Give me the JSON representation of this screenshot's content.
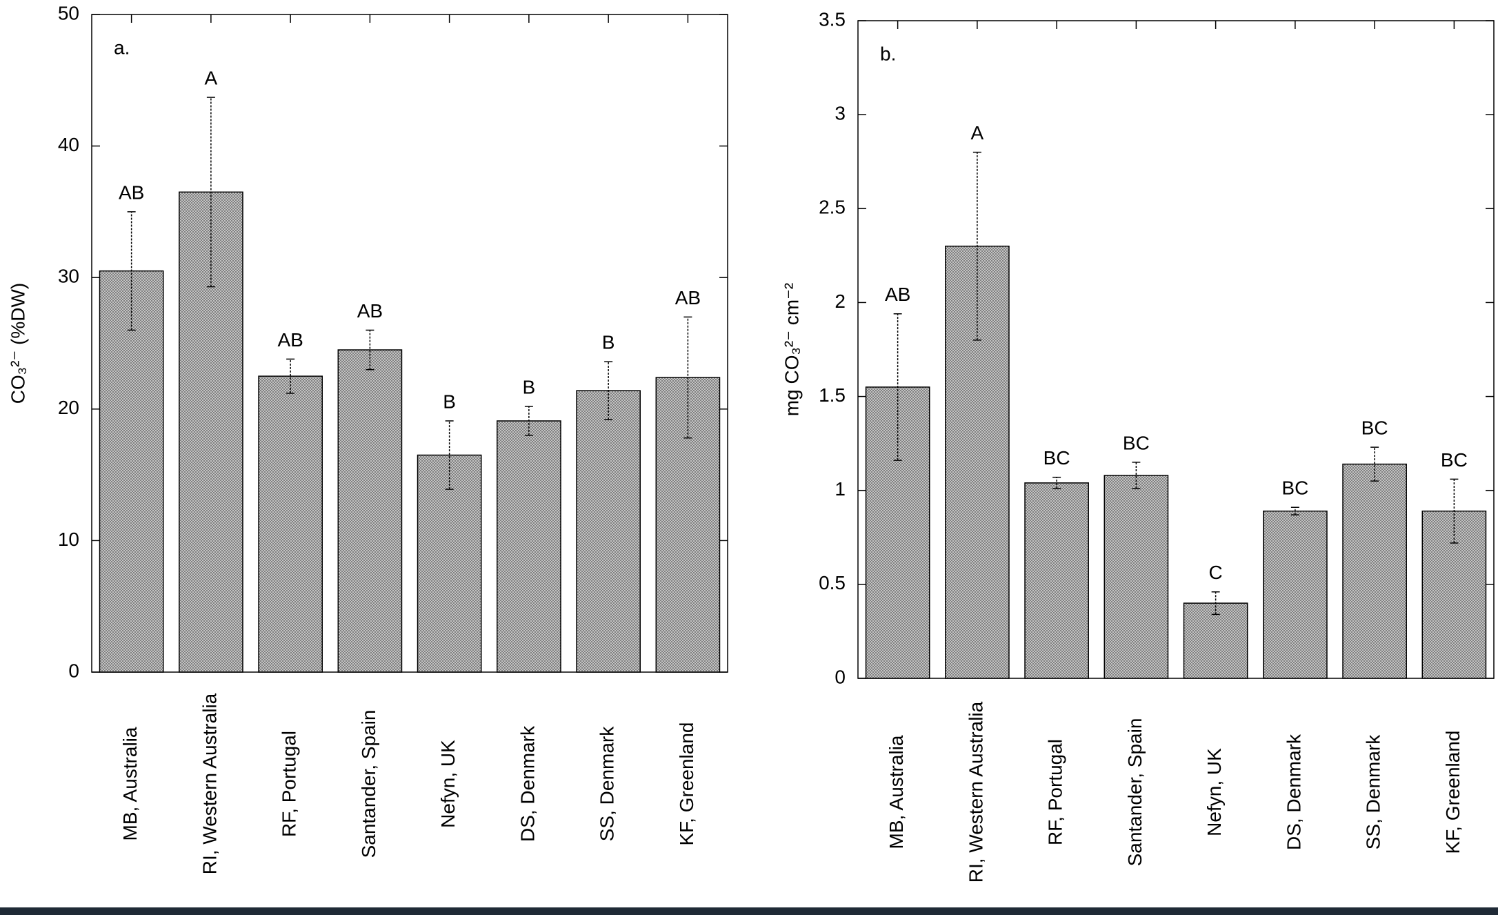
{
  "chart_data": [
    {
      "type": "bar",
      "panel_label": "a.",
      "ylabel": "CO₃²⁻ (%DW)",
      "categories": [
        "MB, Australia",
        "RI, Western Australia",
        "RF, Portugal",
        "Santander, Spain",
        "Nefyn, UK",
        "DS, Denmark",
        "SS, Denmark",
        "KF, Greenland"
      ],
      "values": [
        30.5,
        36.5,
        22.5,
        24.5,
        16.5,
        19.1,
        21.4,
        22.4
      ],
      "errors": [
        4.5,
        7.2,
        1.3,
        1.5,
        2.6,
        1.1,
        2.2,
        4.6
      ],
      "letters": [
        "AB",
        "A",
        "AB",
        "AB",
        "B",
        "B",
        "B",
        "AB"
      ],
      "ylim": [
        0,
        50
      ],
      "yticks": [
        0,
        10,
        20,
        30,
        40,
        50
      ],
      "color": "#b4b4b4"
    },
    {
      "type": "bar",
      "panel_label": "b.",
      "ylabel": "mg CO₃²⁻ cm⁻²",
      "categories": [
        "MB, Australia",
        "RI, Western Australia",
        "RF, Portugal",
        "Santander, Spain",
        "Nefyn, UK",
        "DS, Denmark",
        "SS, Denmark",
        "KF, Greenland"
      ],
      "values": [
        1.55,
        2.3,
        1.04,
        1.08,
        0.4,
        0.89,
        1.14,
        0.89
      ],
      "errors": [
        0.39,
        0.5,
        0.03,
        0.07,
        0.06,
        0.02,
        0.09,
        0.17
      ],
      "letters": [
        "AB",
        "A",
        "BC",
        "BC",
        "C",
        "BC",
        "BC",
        "BC"
      ],
      "ylim": [
        0,
        3.5
      ],
      "yticks": [
        0,
        0.5,
        1,
        1.5,
        2,
        2.5,
        3,
        3.5
      ],
      "color": "#b4b4b4"
    }
  ]
}
